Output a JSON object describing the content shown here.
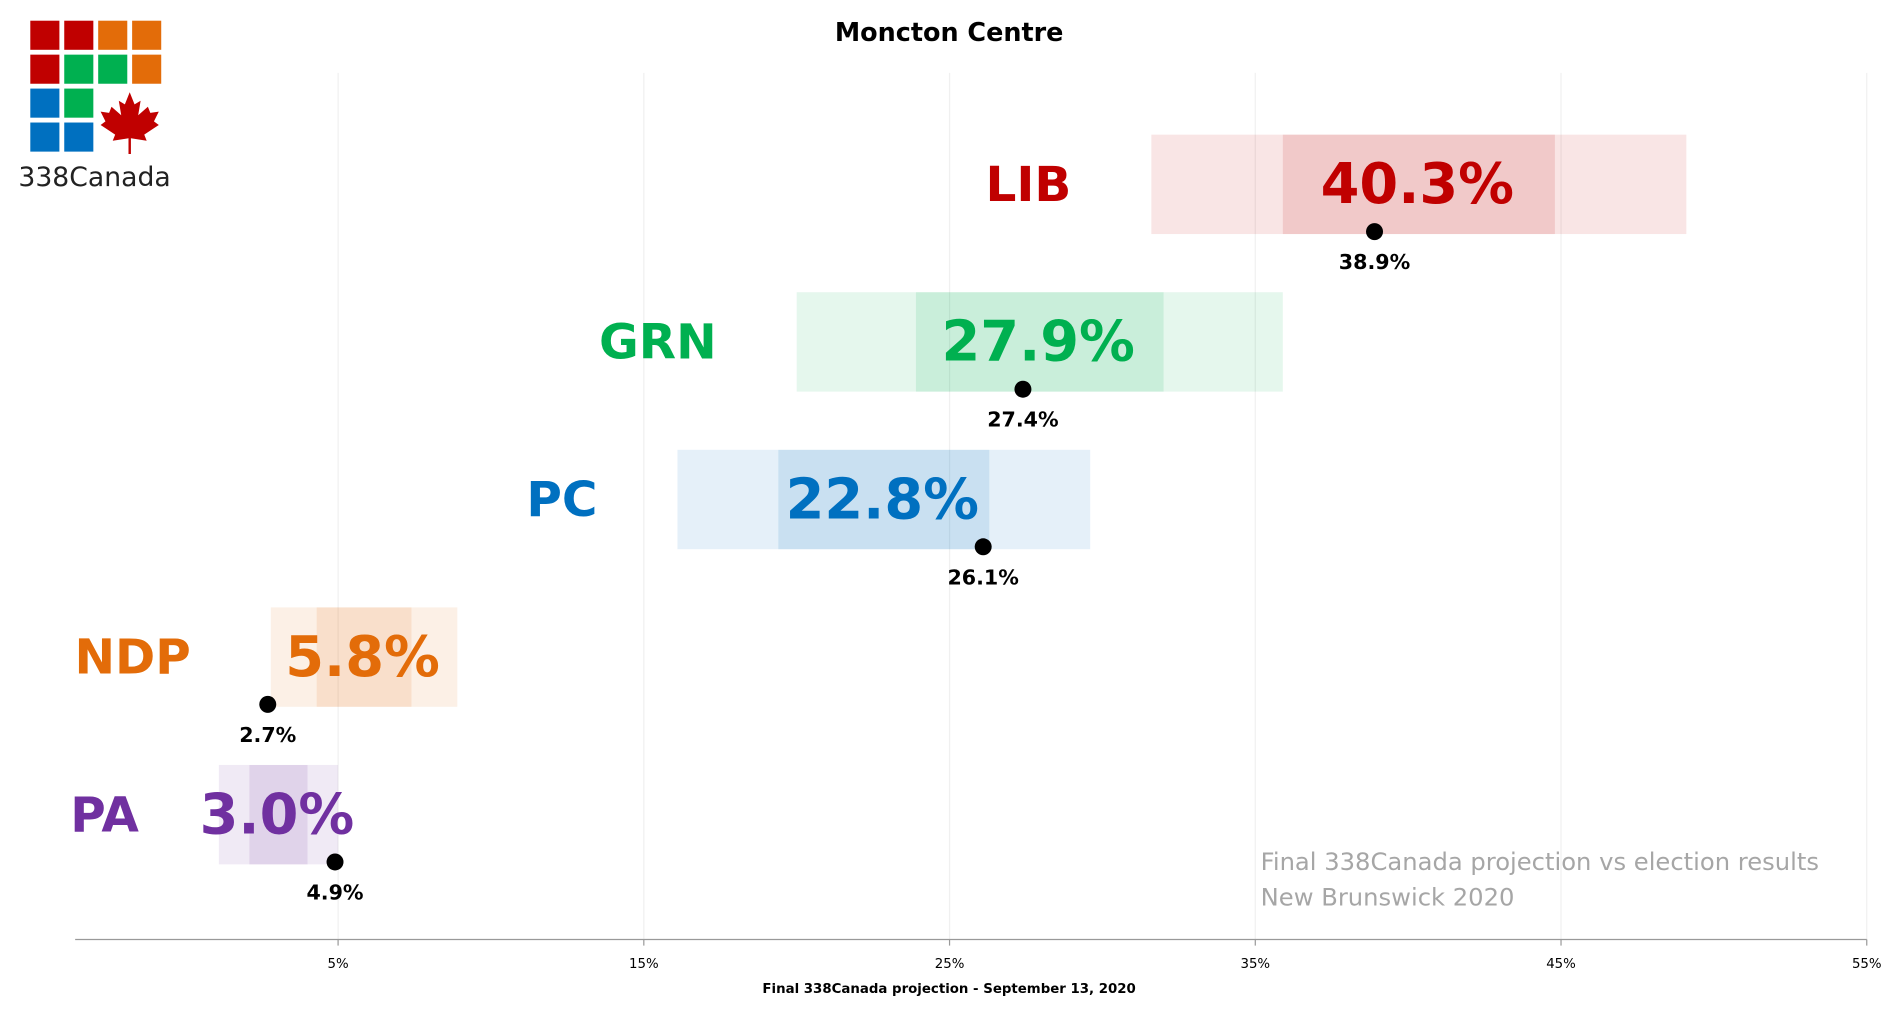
{
  "chart_data": {
    "type": "range",
    "title": "Moncton Centre",
    "brand": "338Canada",
    "x_label": "Final 338Canada projection - September 13, 2020",
    "annotations": [
      "Final 338Canada projection vs election results",
      "New Brunswick 2020"
    ],
    "xlim": [
      -3.6,
      55
    ],
    "xticks": [
      {
        "value": 5,
        "label": "5%"
      },
      {
        "value": 15,
        "label": "15%"
      },
      {
        "value": 25,
        "label": "25%"
      },
      {
        "value": 35,
        "label": "35%"
      },
      {
        "value": 45,
        "label": "45%"
      },
      {
        "value": 55,
        "label": "55%"
      }
    ],
    "grid": true,
    "series": [
      {
        "name": "LIB",
        "color": "#c00000",
        "projection": 40.3,
        "projection_label": "40.3%",
        "range_outer": [
          31.6,
          49.1
        ],
        "range_inner": [
          35.9,
          44.8
        ],
        "result": 38.9,
        "result_label": "38.9%"
      },
      {
        "name": "GRN",
        "color": "#00b050",
        "projection": 27.9,
        "projection_label": "27.9%",
        "range_outer": [
          20.0,
          35.9
        ],
        "range_inner": [
          23.9,
          32.0
        ],
        "result": 27.4,
        "result_label": "27.4%"
      },
      {
        "name": "PC",
        "color": "#0070c0",
        "projection": 22.8,
        "projection_label": "22.8%",
        "range_outer": [
          16.1,
          29.6
        ],
        "range_inner": [
          19.4,
          26.3
        ],
        "result": 26.1,
        "result_label": "26.1%"
      },
      {
        "name": "NDP",
        "color": "#e36c09",
        "projection": 5.8,
        "projection_label": "5.8%",
        "range_outer": [
          2.8,
          8.9
        ],
        "range_inner": [
          4.3,
          7.4
        ],
        "result": 2.7,
        "result_label": "2.7%"
      },
      {
        "name": "PA",
        "color": "#7030a0",
        "projection": 3.0,
        "projection_label": "3.0%",
        "range_outer": [
          1.1,
          5.0
        ],
        "range_inner": [
          2.1,
          4.0
        ],
        "result": 4.9,
        "result_label": "4.9%"
      }
    ]
  }
}
